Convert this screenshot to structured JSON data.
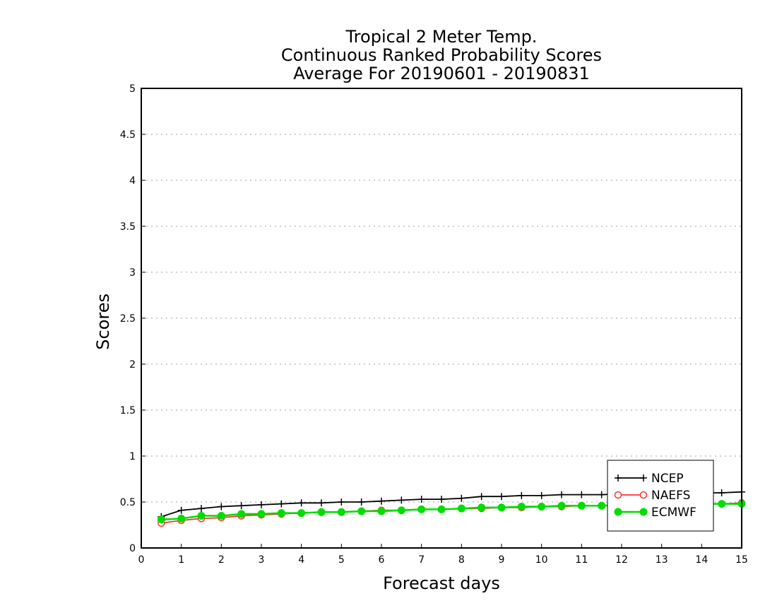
{
  "chart_data": {
    "type": "line",
    "title": [
      "Tropical 2 Meter Temp.",
      "Continuous Ranked Probability Scores",
      "Average For 20190601 - 20190831"
    ],
    "xlabel": "Forecast days",
    "ylabel": "Scores",
    "xlim": [
      0,
      15
    ],
    "ylim": [
      0,
      5
    ],
    "xticks": [
      "0",
      "1",
      "2",
      "3",
      "4",
      "5",
      "6",
      "7",
      "8",
      "9",
      "10",
      "11",
      "12",
      "13",
      "14",
      "15"
    ],
    "yticks": [
      "0",
      "0.5",
      "1",
      "1.5",
      "2",
      "2.5",
      "3",
      "3.5",
      "4",
      "4.5",
      "5"
    ],
    "grid": "horizontal dotted",
    "legend_position": "bottom-right",
    "x": [
      0.5,
      1,
      1.5,
      2,
      2.5,
      3,
      3.5,
      4,
      4.5,
      5,
      5.5,
      6,
      6.5,
      7,
      7.5,
      8,
      8.5,
      9,
      9.5,
      10,
      10.5,
      11,
      11.5,
      12,
      12.5,
      13,
      13.5,
      14,
      14.5,
      15
    ],
    "series": [
      {
        "name": "NCEP",
        "color": "#000000",
        "marker": "plus",
        "values": [
          0.34,
          0.41,
          0.43,
          0.45,
          0.46,
          0.47,
          0.48,
          0.49,
          0.49,
          0.5,
          0.5,
          0.51,
          0.52,
          0.53,
          0.53,
          0.54,
          0.56,
          0.56,
          0.57,
          0.57,
          0.58,
          0.58,
          0.58,
          0.59,
          0.59,
          0.59,
          0.6,
          0.6,
          0.6,
          0.61
        ]
      },
      {
        "name": "NAEFS",
        "color": "#ff3333",
        "marker": "open-circle",
        "values": [
          0.27,
          0.3,
          0.32,
          0.33,
          0.35,
          0.36,
          0.37,
          0.38,
          0.39,
          0.39,
          0.4,
          0.41,
          0.41,
          0.42,
          0.42,
          0.43,
          0.43,
          0.44,
          0.44,
          0.45,
          0.45,
          0.46,
          0.46,
          0.46,
          0.47,
          0.47,
          0.48,
          0.48,
          0.48,
          0.49
        ]
      },
      {
        "name": "ECMWF",
        "color": "#00dd00",
        "marker": "filled-circle",
        "values": [
          0.31,
          0.32,
          0.35,
          0.35,
          0.37,
          0.37,
          0.38,
          0.38,
          0.39,
          0.39,
          0.4,
          0.4,
          0.41,
          0.42,
          0.42,
          0.43,
          0.44,
          0.44,
          0.45,
          0.45,
          0.46,
          0.46,
          0.46,
          0.47,
          0.47,
          0.47,
          0.47,
          0.48,
          0.48,
          0.48
        ]
      }
    ]
  }
}
